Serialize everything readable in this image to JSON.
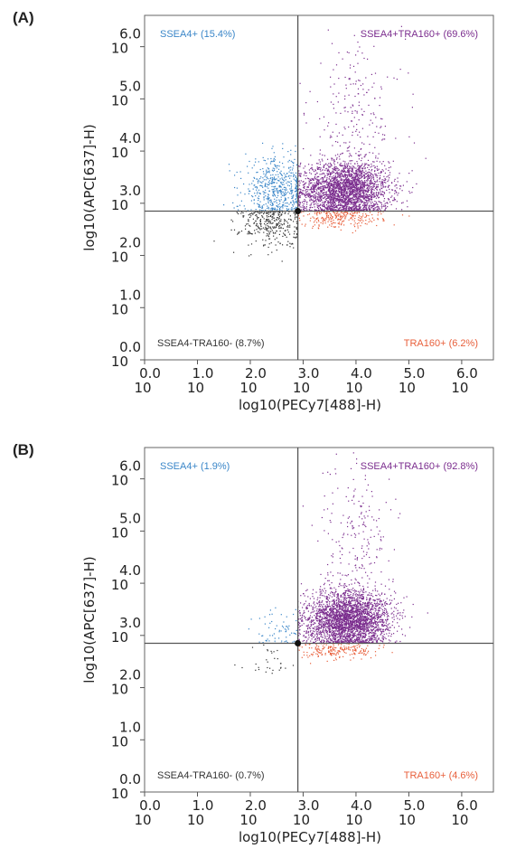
{
  "chart_data": [
    {
      "type": "scatter",
      "panel_label": "(A)",
      "xlabel": "log10(PECy7[488]-H)",
      "ylabel": "log10(APC[637]-H)",
      "xlim": [
        0,
        6.6
      ],
      "ylim": [
        0,
        6.6
      ],
      "x_ticks": [
        "0.0",
        "1.0",
        "2.0",
        "3.0",
        "4.0",
        "5.0",
        "6.0"
      ],
      "y_ticks": [
        "0.0",
        "1.0",
        "2.0",
        "3.0",
        "4.0",
        "5.0",
        "6.0"
      ],
      "tick_base": "10",
      "gate": {
        "x": 2.9,
        "y": 2.85
      },
      "quadrants": [
        {
          "position": "top-left",
          "label": "SSEA4+ (15.4%)",
          "color": "#3a86c8"
        },
        {
          "position": "top-right",
          "label": "SSEA4+TRA160+ (69.6%)",
          "color": "#7b2d8e"
        },
        {
          "position": "bottom-left",
          "label": "SSEA4-TRA160- (8.7%)",
          "color": "#333333"
        },
        {
          "position": "bottom-right",
          "label": "TRA160+ (6.2%)",
          "color": "#e8603c"
        }
      ],
      "clusters": [
        {
          "name": "SSEA4+TRA160+",
          "color": "#7b2d8e",
          "cx": 3.8,
          "cy": 3.25,
          "sx": 0.42,
          "sy": 0.28,
          "n": 2600
        },
        {
          "name": "SSEA4+TRA160+ tail",
          "color": "#7b2d8e",
          "cx": 4.0,
          "cy": 4.7,
          "sx": 0.45,
          "sy": 0.75,
          "n": 220
        },
        {
          "name": "SSEA4+",
          "color": "#3a86c8",
          "cx": 2.5,
          "cy": 3.25,
          "sx": 0.3,
          "sy": 0.3,
          "n": 560
        },
        {
          "name": "SSEA4-TRA160-",
          "color": "#333333",
          "cx": 2.4,
          "cy": 2.6,
          "sx": 0.3,
          "sy": 0.22,
          "n": 330
        },
        {
          "name": "TRA160+",
          "color": "#e8603c",
          "cx": 3.7,
          "cy": 2.72,
          "sx": 0.4,
          "sy": 0.1,
          "n": 260
        }
      ]
    },
    {
      "type": "scatter",
      "panel_label": "(B)",
      "xlabel": "log10(PECy7[488]-H)",
      "ylabel": "log10(APC[637]-H)",
      "xlim": [
        0,
        6.6
      ],
      "ylim": [
        0,
        6.6
      ],
      "x_ticks": [
        "0.0",
        "1.0",
        "2.0",
        "3.0",
        "4.0",
        "5.0",
        "6.0"
      ],
      "y_ticks": [
        "0.0",
        "1.0",
        "2.0",
        "3.0",
        "4.0",
        "5.0",
        "6.0"
      ],
      "tick_base": "10",
      "gate": {
        "x": 2.9,
        "y": 2.85
      },
      "quadrants": [
        {
          "position": "top-left",
          "label": "SSEA4+ (1.9%)",
          "color": "#3a86c8"
        },
        {
          "position": "top-right",
          "label": "SSEA4+TRA160+ (92.8%)",
          "color": "#7b2d8e"
        },
        {
          "position": "bottom-left",
          "label": "SSEA4-TRA160- (0.7%)",
          "color": "#333333"
        },
        {
          "position": "bottom-right",
          "label": "TRA160+ (4.6%)",
          "color": "#e8603c"
        }
      ],
      "clusters": [
        {
          "name": "SSEA4+TRA160+",
          "color": "#7b2d8e",
          "cx": 3.85,
          "cy": 3.3,
          "sx": 0.4,
          "sy": 0.28,
          "n": 2800
        },
        {
          "name": "SSEA4+TRA160+ tail",
          "color": "#7b2d8e",
          "cx": 4.0,
          "cy": 4.8,
          "sx": 0.35,
          "sy": 0.75,
          "n": 220
        },
        {
          "name": "SSEA4+",
          "color": "#3a86c8",
          "cx": 2.55,
          "cy": 3.1,
          "sx": 0.25,
          "sy": 0.25,
          "n": 70
        },
        {
          "name": "SSEA4-TRA160-",
          "color": "#333333",
          "cx": 2.3,
          "cy": 2.55,
          "sx": 0.25,
          "sy": 0.15,
          "n": 30
        },
        {
          "name": "TRA160+",
          "color": "#e8603c",
          "cx": 3.6,
          "cy": 2.72,
          "sx": 0.4,
          "sy": 0.09,
          "n": 200
        }
      ]
    }
  ]
}
